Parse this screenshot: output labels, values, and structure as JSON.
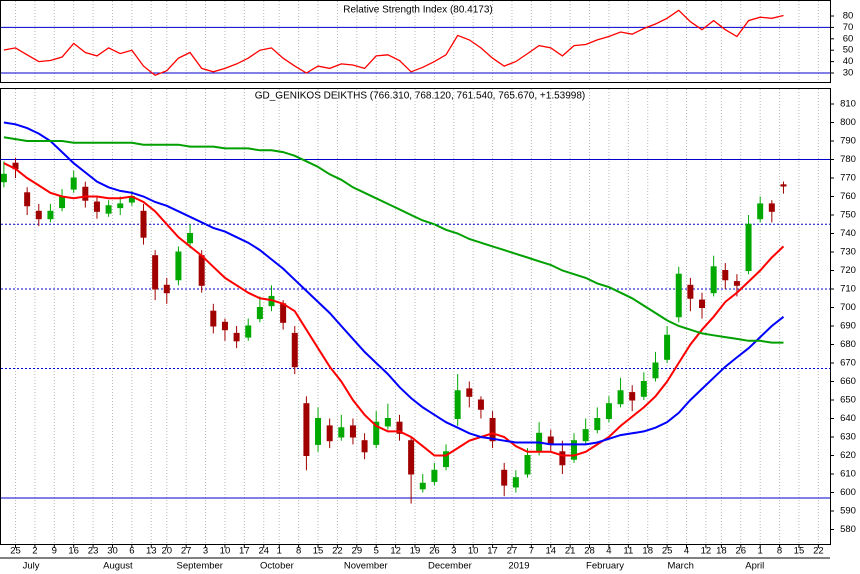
{
  "chart_data": [
    {
      "type": "line",
      "title": "Relative Strength Index (80.4173)",
      "color": "#ff0000",
      "ylim": [
        22,
        88
      ],
      "yticks": [
        30,
        40,
        50,
        60,
        70,
        80
      ],
      "xlim": [
        0,
        214
      ],
      "hline_color": "#0000cc",
      "hlines": [
        {
          "value": 70,
          "style": "solid"
        },
        {
          "value": 30,
          "style": "solid"
        }
      ],
      "x": [
        1,
        4,
        7,
        10,
        13,
        16,
        19,
        22,
        25,
        28,
        31,
        34,
        37,
        40,
        43,
        46,
        49,
        52,
        55,
        58,
        61,
        64,
        67,
        70,
        73,
        76,
        79,
        82,
        85,
        88,
        91,
        94,
        97,
        100,
        103,
        106,
        109,
        112,
        115,
        118,
        121,
        124,
        127,
        130,
        133,
        136,
        139,
        142,
        145,
        148,
        151,
        154,
        157,
        160,
        163,
        166,
        169,
        172,
        175,
        178,
        181,
        184,
        187,
        190,
        193,
        196,
        199,
        202
      ],
      "values": [
        50.2,
        52,
        46,
        40,
        41,
        44,
        56,
        48,
        45,
        52,
        47,
        50,
        36,
        28,
        32,
        43,
        48,
        34,
        31,
        34,
        38,
        43,
        50,
        52,
        43,
        36,
        30,
        36,
        34,
        38,
        37,
        34,
        45,
        46,
        41,
        31,
        35,
        40,
        46,
        63,
        59,
        52,
        43,
        36,
        40,
        47,
        54,
        52,
        45,
        54,
        55,
        59,
        62,
        66,
        64,
        69,
        73,
        78,
        85,
        75,
        68,
        76,
        68,
        62,
        76,
        79,
        78,
        80.4173
      ]
    },
    {
      "type": "candlestick",
      "title": "GD_GENIKOS DEIKTHS (766.310, 768.120, 761.540, 765.670, +1.53998)",
      "up_color": "#00a800",
      "down_color": "#a00000",
      "ylim": [
        572,
        815
      ],
      "yticks": [
        580,
        590,
        600,
        610,
        620,
        630,
        640,
        650,
        660,
        670,
        680,
        690,
        700,
        710,
        720,
        730,
        740,
        750,
        760,
        770,
        780,
        790,
        800,
        810
      ],
      "xlim": [
        0,
        214
      ],
      "hline_color": "#0000cc",
      "hlines": [
        {
          "value": 780,
          "style": "solid"
        },
        {
          "value": 745,
          "style": "dotted"
        },
        {
          "value": 710,
          "style": "dotted"
        },
        {
          "value": 667,
          "style": "dotted"
        },
        {
          "value": 597,
          "style": "solid"
        }
      ],
      "xticks": [
        {
          "value": 4,
          "label": "25"
        },
        {
          "value": 9,
          "label": "2"
        },
        {
          "value": 14,
          "label": "9"
        },
        {
          "value": 19,
          "label": "16"
        },
        {
          "value": 24,
          "label": "23"
        },
        {
          "value": 29,
          "label": "30"
        },
        {
          "value": 34,
          "label": "6"
        },
        {
          "value": 39,
          "label": "13"
        },
        {
          "value": 43,
          "label": "20"
        },
        {
          "value": 48,
          "label": "27"
        },
        {
          "value": 53,
          "label": "3"
        },
        {
          "value": 58,
          "label": "10"
        },
        {
          "value": 63,
          "label": "17"
        },
        {
          "value": 68,
          "label": "24"
        },
        {
          "value": 72,
          "label": "1"
        },
        {
          "value": 77,
          "label": "8"
        },
        {
          "value": 82,
          "label": "15"
        },
        {
          "value": 87,
          "label": "22"
        },
        {
          "value": 92,
          "label": "29"
        },
        {
          "value": 97,
          "label": "5"
        },
        {
          "value": 102,
          "label": "12"
        },
        {
          "value": 107,
          "label": "19"
        },
        {
          "value": 112,
          "label": "26"
        },
        {
          "value": 117,
          "label": "3"
        },
        {
          "value": 122,
          "label": "10"
        },
        {
          "value": 127,
          "label": "17"
        },
        {
          "value": 132,
          "label": "27"
        },
        {
          "value": 137,
          "label": "7"
        },
        {
          "value": 142,
          "label": "14"
        },
        {
          "value": 147,
          "label": "21"
        },
        {
          "value": 152,
          "label": "28"
        },
        {
          "value": 157,
          "label": "4"
        },
        {
          "value": 162,
          "label": "11"
        },
        {
          "value": 167,
          "label": "18"
        },
        {
          "value": 172,
          "label": "25"
        },
        {
          "value": 177,
          "label": "4"
        },
        {
          "value": 182,
          "label": "12"
        },
        {
          "value": 186,
          "label": "18"
        },
        {
          "value": 191,
          "label": "26"
        },
        {
          "value": 196,
          "label": "1"
        },
        {
          "value": 201,
          "label": "8"
        },
        {
          "value": 206,
          "label": "15"
        },
        {
          "value": 211,
          "label": "22"
        }
      ],
      "month_labels": [
        {
          "value": 8,
          "label": "July"
        },
        {
          "value": 30.4,
          "label": "August"
        },
        {
          "value": 51.5,
          "label": "September"
        },
        {
          "value": 71.4,
          "label": "October"
        },
        {
          "value": 94.3,
          "label": "November"
        },
        {
          "value": 116,
          "label": "December"
        },
        {
          "value": 133.8,
          "label": "2019"
        },
        {
          "value": 156,
          "label": "February"
        },
        {
          "value": 175.5,
          "label": "March"
        },
        {
          "value": 194.6,
          "label": "April"
        }
      ],
      "x": [
        1,
        4,
        7,
        10,
        13,
        16,
        19,
        22,
        25,
        28,
        31,
        34,
        37,
        40,
        43,
        46,
        49,
        52,
        55,
        58,
        61,
        64,
        67,
        70,
        73,
        76,
        79,
        82,
        85,
        88,
        91,
        94,
        97,
        100,
        103,
        106,
        109,
        112,
        115,
        118,
        121,
        124,
        127,
        130,
        133,
        136,
        139,
        142,
        145,
        148,
        151,
        154,
        157,
        160,
        163,
        166,
        169,
        172,
        175,
        178,
        181,
        184,
        187,
        190,
        193,
        196,
        199,
        202
      ],
      "open": [
        768,
        778,
        762,
        752,
        748,
        754,
        764,
        765,
        757,
        751,
        754,
        757,
        752,
        728,
        712,
        715,
        735,
        728,
        698,
        692,
        686,
        684,
        694,
        701,
        702,
        686,
        648,
        626,
        636,
        630,
        636,
        628,
        626,
        636,
        638,
        628,
        602,
        606,
        614,
        640,
        656,
        650,
        640,
        612,
        603,
        610,
        622,
        630,
        622,
        618,
        628,
        634,
        640,
        648,
        654,
        652,
        662,
        672,
        695,
        712,
        704,
        708,
        720,
        714,
        720,
        748,
        756,
        766.31
      ],
      "high": [
        779,
        781,
        765,
        756,
        756,
        764,
        774,
        768,
        760,
        758,
        760,
        763,
        756,
        731,
        716,
        733,
        745,
        731,
        702,
        694,
        690,
        694,
        706,
        712,
        704,
        690,
        652,
        646,
        640,
        642,
        640,
        632,
        644,
        648,
        642,
        630,
        610,
        616,
        626,
        664,
        660,
        652,
        644,
        616,
        612,
        624,
        638,
        634,
        628,
        632,
        640,
        646,
        652,
        662,
        658,
        665,
        676,
        690,
        722,
        716,
        708,
        728,
        724,
        718,
        750,
        760,
        758,
        768.12
      ],
      "low": [
        765,
        770,
        750,
        744,
        746,
        752,
        762,
        754,
        748,
        749,
        750,
        755,
        734,
        704,
        702,
        712,
        732,
        708,
        686,
        682,
        678,
        682,
        692,
        698,
        688,
        664,
        612,
        622,
        624,
        628,
        626,
        618,
        624,
        634,
        628,
        594,
        600,
        604,
        612,
        636,
        646,
        640,
        624,
        598,
        600,
        608,
        620,
        622,
        610,
        616,
        626,
        632,
        638,
        646,
        644,
        650,
        660,
        670,
        692,
        698,
        694,
        706,
        710,
        706,
        718,
        746,
        746,
        761.54
      ],
      "close": [
        772,
        775,
        755,
        748,
        752,
        760,
        770,
        758,
        752,
        755,
        756,
        760,
        738,
        710,
        708,
        730,
        740,
        712,
        690,
        688,
        682,
        690,
        700,
        706,
        692,
        668,
        620,
        640,
        628,
        635,
        630,
        622,
        638,
        640,
        632,
        610,
        605,
        612,
        622,
        655,
        652,
        645,
        628,
        604,
        608,
        620,
        632,
        626,
        615,
        628,
        634,
        640,
        648,
        655,
        650,
        660,
        670,
        685,
        718,
        705,
        700,
        722,
        715,
        712,
        745,
        756,
        752,
        765.67
      ],
      "series": [
        {
          "color": "#ff0000",
          "values": [
            778,
            775,
            770,
            766,
            762,
            760,
            759,
            760,
            760,
            759,
            759,
            760,
            757,
            752,
            745,
            738,
            733,
            728,
            722,
            716,
            712,
            708,
            705,
            704,
            702,
            698,
            688,
            678,
            668,
            660,
            650,
            642,
            636,
            633,
            633,
            630,
            625,
            620,
            620,
            624,
            628,
            630,
            632,
            630,
            625,
            622,
            622,
            622,
            620,
            620,
            622,
            626,
            630,
            636,
            641,
            646,
            652,
            660,
            670,
            680,
            688,
            695,
            703,
            708,
            714,
            720,
            727,
            733
          ]
        },
        {
          "color": "#0000ff",
          "values": [
            800,
            799,
            797,
            794,
            790,
            784,
            778,
            773,
            768,
            765,
            763,
            762,
            760,
            757,
            755,
            752,
            749,
            746,
            743,
            741,
            738,
            735,
            731,
            726,
            721,
            715,
            709,
            703,
            697,
            690,
            683,
            676,
            670,
            664,
            657,
            651,
            646,
            642,
            638,
            635,
            632,
            630,
            629,
            628,
            627,
            627,
            627,
            626,
            626,
            626,
            626,
            627,
            629,
            631,
            632,
            633,
            635,
            638,
            643,
            650,
            656,
            662,
            668,
            673,
            678,
            684,
            690,
            695
          ]
        },
        {
          "color": "#00a000",
          "values": [
            792,
            791,
            790,
            790,
            790,
            790,
            789,
            789,
            789,
            789,
            789,
            789,
            788,
            788,
            788,
            788,
            787,
            787,
            787,
            786,
            786,
            786,
            785,
            785,
            784,
            782,
            779,
            776,
            772,
            769,
            765,
            762,
            759,
            756,
            753,
            750,
            747,
            745,
            742,
            740,
            737,
            735,
            733,
            731,
            729,
            727,
            725,
            723,
            720,
            718,
            716,
            713,
            711,
            708,
            705,
            701,
            697,
            693,
            690,
            688,
            686,
            685,
            684,
            683,
            682,
            682,
            681,
            681
          ]
        }
      ]
    }
  ]
}
